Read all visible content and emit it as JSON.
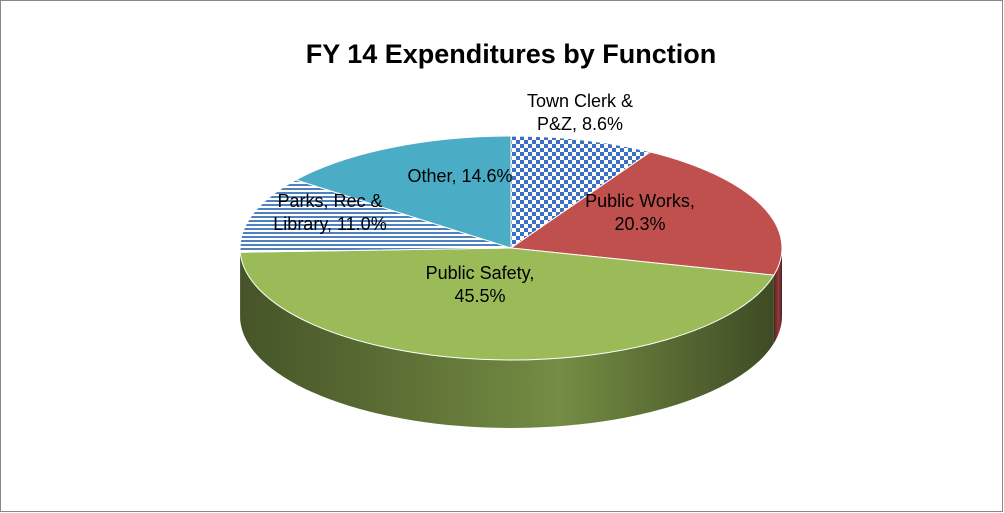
{
  "chart_data": {
    "type": "pie",
    "title": "FY 14 Expenditures by Function",
    "categories": [
      "Town Clerk & P&Z",
      "Public Works",
      "Public Safety",
      "Parks, Rec & Library",
      "Other"
    ],
    "values": [
      8.6,
      20.3,
      45.5,
      11.0,
      14.6
    ],
    "value_labels": [
      "8.6%",
      "20.3%",
      "45.5%",
      "11.0%",
      "14.6%"
    ],
    "colors": [
      "#3a6fc4",
      "#c0504d",
      "#9bbb59",
      "#4f81bd",
      "#4bacc6"
    ],
    "patterns": [
      "checker",
      "solid",
      "solid",
      "stripes",
      "solid"
    ]
  }
}
